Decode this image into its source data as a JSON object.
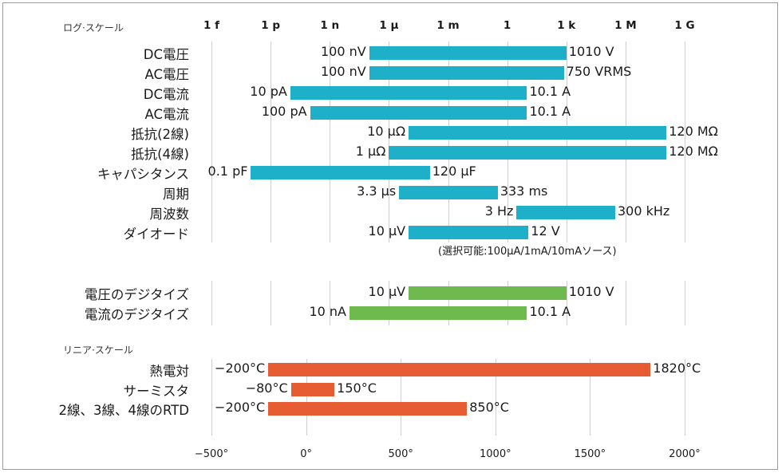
{
  "chart_data": [
    {
      "type": "bar",
      "section_label": "ログ·スケール",
      "scale": "log",
      "ticks": [
        "1 f",
        "1 p",
        "1 n",
        "1 μ",
        "1 m",
        "1",
        "1 k",
        "1 M",
        "1 G"
      ],
      "tick_exponents": [
        -15,
        -12,
        -9,
        -6,
        -3,
        0,
        3,
        6,
        9
      ],
      "color": "#1fb0c9",
      "rows": [
        {
          "name": "DC電圧",
          "min_label": "100 nV",
          "max_label": "1010 V",
          "min": 1e-07,
          "max": 1010
        },
        {
          "name": "AC電圧",
          "min_label": "100 nV",
          "max_label": "750 VRMS",
          "min": 1e-07,
          "max": 750
        },
        {
          "name": "DC電流",
          "min_label": "10 pA",
          "max_label": "10.1 A",
          "min": 1e-11,
          "max": 10.1
        },
        {
          "name": "AC電流",
          "min_label": "100 pA",
          "max_label": "10.1 A",
          "min": 1e-10,
          "max": 10.1
        },
        {
          "name": "抵抗(2線)",
          "min_label": "10 μΩ",
          "max_label": "120 MΩ",
          "min": 1e-05,
          "max": 120000000.0
        },
        {
          "name": "抵抗(4線)",
          "min_label": "1 μΩ",
          "max_label": "120 MΩ",
          "min": 1e-06,
          "max": 120000000.0
        },
        {
          "name": "キャパシタンス",
          "min_label": "0.1 pF",
          "max_label": "120 μF",
          "min": 1e-13,
          "max": 0.00012
        },
        {
          "name": "周期",
          "min_label": "3.3 μs",
          "max_label": "333 ms",
          "min": 3.3e-06,
          "max": 0.333
        },
        {
          "name": "周波数",
          "min_label": "3 Hz",
          "max_label": "300 kHz",
          "min": 3,
          "max": 300000.0
        },
        {
          "name": "ダイオード",
          "min_label": "10 μV",
          "max_label": "12 V",
          "min": 1e-05,
          "max": 12
        }
      ],
      "note": "(選択可能:100μA/1mA/10mAソース)"
    },
    {
      "type": "bar",
      "scale": "log",
      "color": "#6fba4e",
      "rows": [
        {
          "name": "電圧のデジタイズ",
          "min_label": "10 μV",
          "max_label": "1010 V",
          "min": 1e-05,
          "max": 1010
        },
        {
          "name": "電流のデジタイズ",
          "min_label": "10 nA",
          "max_label": "10.1 A",
          "min": 1e-08,
          "max": 10.1
        }
      ]
    },
    {
      "type": "bar",
      "section_label": "リニア·スケール",
      "scale": "linear",
      "ticks": [
        "−500°",
        "0°",
        "500°",
        "1000°",
        "1500°",
        "2000°"
      ],
      "tick_values": [
        -500,
        0,
        500,
        1000,
        1500,
        2000
      ],
      "color": "#e65c33",
      "rows": [
        {
          "name": "熱電対",
          "min_label": "−200°C",
          "max_label": "1820°C",
          "min": -200,
          "max": 1820
        },
        {
          "name": "サーミスタ",
          "min_label": "−80°C",
          "max_label": "150°C",
          "min": -80,
          "max": 150
        },
        {
          "name": "2線、3線、4線のRTD",
          "min_label": "−200°C",
          "max_label": "850°C",
          "min": -200,
          "max": 850
        }
      ]
    }
  ]
}
